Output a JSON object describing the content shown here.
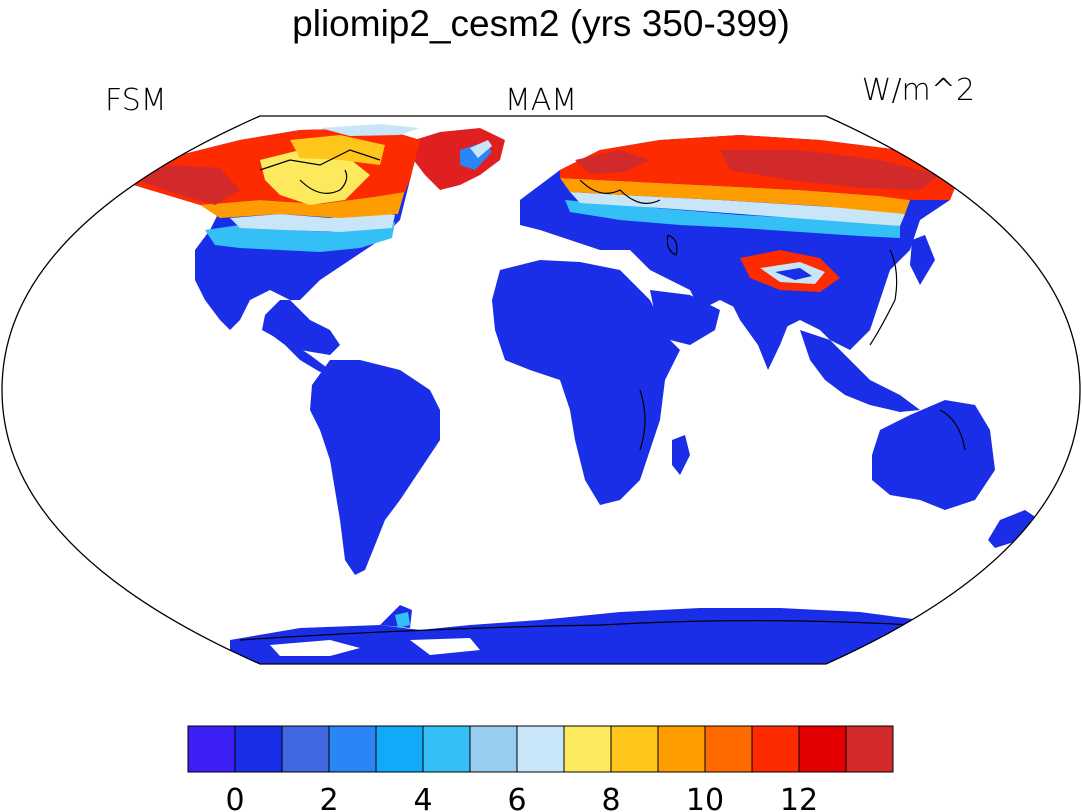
{
  "title": "pliomip2_cesm2 (yrs 350-399)",
  "left_label": "FSM",
  "center_label": "MAM",
  "right_label": "W/m^2",
  "colorbar": {
    "colors": [
      "#3b1ff5",
      "#1a2ee8",
      "#4068e0",
      "#2a86f7",
      "#10aaf8",
      "#34c0f6",
      "#98cdef",
      "#c9e6f8",
      "#fde95e",
      "#fec51b",
      "#fe9c00",
      "#fe6a00",
      "#fe2a00",
      "#e30000",
      "#d22a2a"
    ],
    "tick_labels": [
      "0",
      "2",
      "4",
      "6",
      "8",
      "10",
      "12"
    ]
  },
  "palette": {
    "land_low": "#1a2ee8",
    "ocean": "#ffffff",
    "outline": "#000000"
  }
}
